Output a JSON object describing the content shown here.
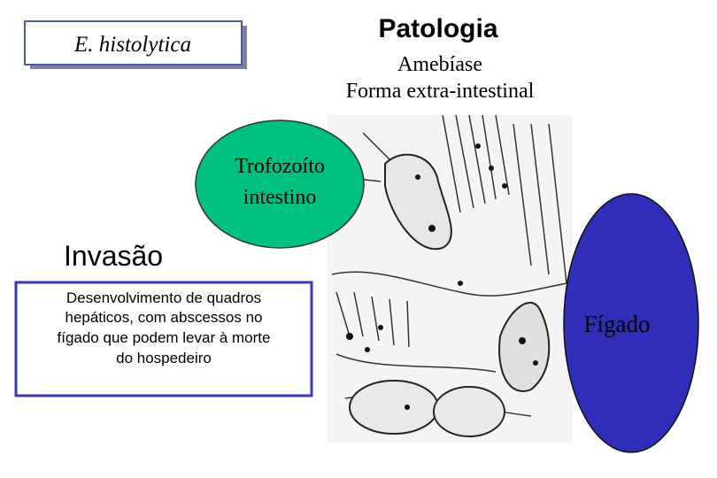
{
  "label_box": "E. histolytica",
  "header": {
    "title": "Patologia",
    "subtitle_lines": [
      "Amebíase",
      "Forma extra-intestinal"
    ]
  },
  "trophozoite": {
    "lines": [
      "Trofozoíto",
      "intestino"
    ]
  },
  "invasion": {
    "heading": "Invasão",
    "description_lines": [
      "Desenvolvimento de quadros",
      "hepáticos, com abscessos no",
      "fígado que podem levar à morte",
      "do hospedeiro"
    ]
  },
  "organ": "Fígado"
}
